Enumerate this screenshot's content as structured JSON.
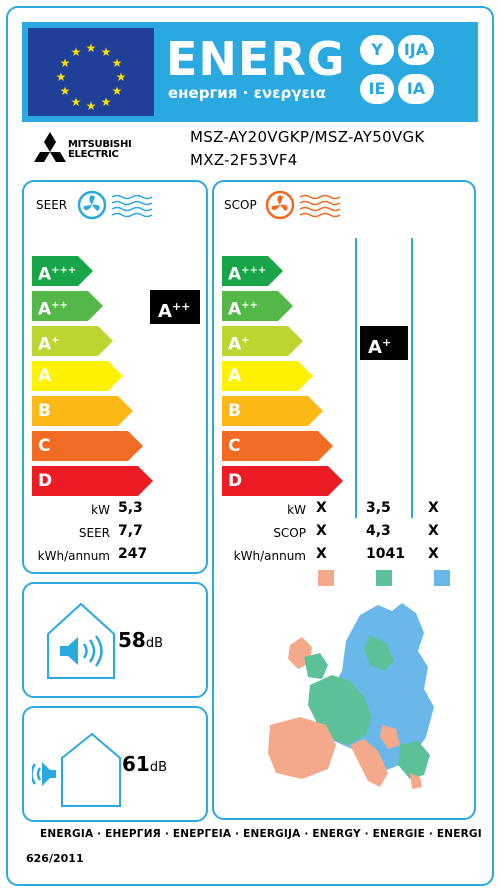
{
  "header": {
    "word": "ENERG",
    "subtitle": "енергия · ενεργεια",
    "lang_pills": [
      "Y",
      "IJA",
      "IE",
      "IA"
    ]
  },
  "brand": {
    "name_line1": "MITSUBISHI",
    "name_line2": "ELECTRIC"
  },
  "models": {
    "indoor": "MSZ-AY20VGKP/MSZ-AY50VGK",
    "outdoor": "MXZ-2F53VF4"
  },
  "scale": {
    "classes": [
      {
        "letter": "A",
        "sup": "+++",
        "color": "#17a548"
      },
      {
        "letter": "A",
        "sup": "++",
        "color": "#53b848"
      },
      {
        "letter": "A",
        "sup": "+",
        "color": "#bdd431"
      },
      {
        "letter": "A",
        "sup": "",
        "color": "#fff200"
      },
      {
        "letter": "B",
        "sup": "",
        "color": "#fcb814"
      },
      {
        "letter": "C",
        "sup": "",
        "color": "#f16b23"
      },
      {
        "letter": "D",
        "sup": "",
        "color": "#ec1c24"
      }
    ]
  },
  "seer": {
    "title": "SEER",
    "rating_letter": "A",
    "rating_sup": "++",
    "rows": [
      {
        "label": "kW",
        "value": "5,3"
      },
      {
        "label": "SEER",
        "value": "7,7"
      },
      {
        "label": "kWh/annum",
        "value": "247"
      }
    ]
  },
  "scop": {
    "title": "SCOP",
    "rating_letter": "A",
    "rating_sup": "+",
    "rows": [
      {
        "label": "kW",
        "values": [
          "X",
          "3,5",
          "X"
        ]
      },
      {
        "label": "SCOP",
        "values": [
          "X",
          "4,3",
          "X"
        ]
      },
      {
        "label": "kWh/annum",
        "values": [
          "X",
          "1041",
          "X"
        ]
      }
    ],
    "zone_colors": [
      "#f4a98b",
      "#5cc198",
      "#6ab8ea"
    ]
  },
  "noise": {
    "indoor": {
      "value": "58",
      "unit": "dB"
    },
    "outdoor": {
      "value": "61",
      "unit": "dB"
    }
  },
  "footer": {
    "languages": "ENERGIA · ЕНЕРГИЯ · ΕΝΕΡΓΕΙΑ · ENERGIJA · ENERGY · ENERGIE · ENERGI",
    "regulation": "626/2011"
  },
  "colors": {
    "accent": "#2aa8e0",
    "flag": "#1f3f99",
    "star": "#ffdd00"
  }
}
